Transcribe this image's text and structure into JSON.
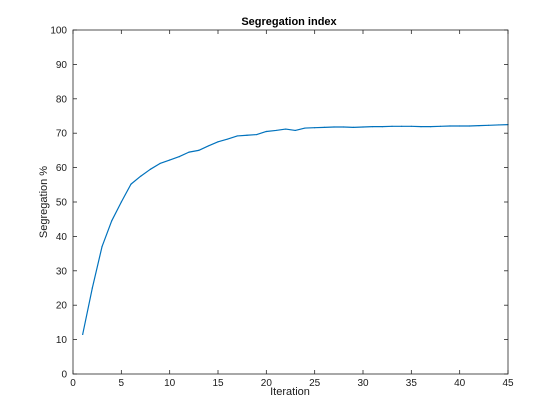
{
  "chart_data": {
    "type": "line",
    "title": "Segregation index",
    "xlabel": "Iteration",
    "ylabel": "Segregation %",
    "xlim": [
      0,
      45
    ],
    "ylim": [
      0,
      100
    ],
    "xticks": [
      0,
      5,
      10,
      15,
      20,
      25,
      30,
      35,
      40,
      45
    ],
    "yticks": [
      0,
      10,
      20,
      30,
      40,
      50,
      60,
      70,
      80,
      90,
      100
    ],
    "grid": false,
    "legend": "none",
    "series": [
      {
        "color": "#0072bd",
        "x": [
          1,
          2,
          3,
          4,
          5,
          6,
          7,
          8,
          9,
          10,
          11,
          12,
          13,
          14,
          15,
          16,
          17,
          18,
          19,
          20,
          21,
          22,
          23,
          24,
          25,
          26,
          27,
          28,
          29,
          30,
          31,
          32,
          33,
          34,
          35,
          36,
          37,
          38,
          39,
          40,
          41,
          42,
          43,
          44,
          45
        ],
        "y": [
          11.5,
          25,
          37,
          44.5,
          50,
          55.2,
          57.5,
          59.5,
          61.2,
          62.2,
          63.2,
          64.5,
          65,
          66.3,
          67.5,
          68.3,
          69.2,
          69.4,
          69.6,
          70.5,
          70.8,
          71.2,
          70.8,
          71.5,
          71.6,
          71.7,
          71.8,
          71.8,
          71.7,
          71.8,
          71.9,
          71.9,
          72,
          72,
          72,
          71.9,
          71.9,
          72,
          72.1,
          72.1,
          72.1,
          72.2,
          72.3,
          72.4,
          72.5
        ]
      }
    ]
  }
}
